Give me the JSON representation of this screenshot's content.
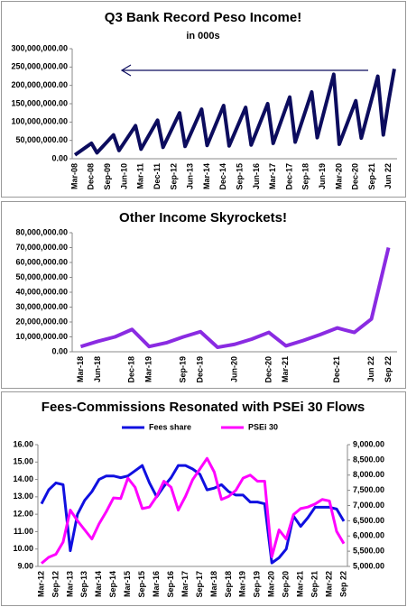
{
  "chart_data": [
    {
      "type": "line",
      "title": "Q3 Bank Record Peso Income!",
      "subtitle": "in 000s",
      "categories": [
        "Mar-08",
        null,
        null,
        "Dec-08",
        null,
        null,
        "Sep-09",
        null,
        null,
        "Jun-10",
        null,
        null,
        "Mar-11",
        null,
        null,
        "Dec-11",
        null,
        null,
        "Sep-12",
        null,
        null,
        "Jun-13",
        null,
        null,
        "Mar-14",
        null,
        null,
        "Dec-14",
        null,
        null,
        "Sep-15",
        null,
        null,
        "Jun-16",
        null,
        null,
        "Mar-17",
        null,
        null,
        "Dec-17",
        null,
        null,
        "Sep-18",
        null,
        null,
        "Jun-19",
        null,
        null,
        "Mar-20",
        null,
        null,
        "Dec-20",
        null,
        null,
        "Sep-21",
        null,
        null,
        "Jun 22",
        null
      ],
      "values": [
        10500000,
        21000000,
        31500000,
        42000000,
        16250000,
        32500000,
        48750000,
        65000000,
        22500000,
        45000000,
        67500000,
        90000000,
        26250000,
        52500000,
        78750000,
        105000000,
        31250000,
        62500000,
        93750000,
        125000000,
        33750000,
        67500000,
        101250000,
        135000000,
        36250000,
        72500000,
        108750000,
        145000000,
        35000000,
        70000000,
        105000000,
        140000000,
        37500000,
        75000000,
        112500000,
        150000000,
        42000000,
        84000000,
        126000000,
        168000000,
        45500000,
        91000000,
        136500000,
        182000000,
        57500000,
        115000000,
        172500000,
        230000000,
        39500000,
        79000000,
        118500000,
        158000000,
        56250000,
        112500000,
        168750000,
        225000000,
        65000000,
        160000000,
        245000000
      ],
      "color": "#0c0c5e",
      "ylim": [
        0,
        300000000
      ],
      "yticks": [
        {
          "value": 0,
          "label": "0.00"
        },
        {
          "value": 50000000,
          "label": "50,000,000.00"
        },
        {
          "value": 100000000,
          "label": "100,000,000.00"
        },
        {
          "value": 150000000,
          "label": "150,000,000.00"
        },
        {
          "value": 200000000,
          "label": "200,000,000.00"
        },
        {
          "value": 250000000,
          "label": "250,000,000.00"
        },
        {
          "value": 300000000,
          "label": "300,000,000.00"
        }
      ]
    },
    {
      "type": "line",
      "title": "Other Income Skyrockets!",
      "categories": [
        "Mar-18",
        "Jun-18",
        null,
        "Dec-18",
        "Mar-19",
        null,
        "Sep-19",
        "Dec-19",
        null,
        "Jun-20",
        null,
        "Dec-20",
        "Mar-21",
        null,
        null,
        "Dec-21",
        null,
        "Jun 22",
        "Sep 22"
      ],
      "values": [
        3500000,
        7000000,
        10000000,
        15000000,
        3500000,
        6000000,
        10000000,
        13500000,
        3000000,
        5000000,
        8500000,
        13000000,
        4000000,
        7500000,
        11500000,
        16000000,
        13000000,
        22000000,
        70000000
      ],
      "color": "#8a2be2",
      "ylim": [
        0,
        80000000
      ],
      "yticks": [
        {
          "value": 0,
          "label": "0.00"
        },
        {
          "value": 10000000,
          "label": "10,000,000.00"
        },
        {
          "value": 20000000,
          "label": "20,000,000.00"
        },
        {
          "value": 30000000,
          "label": "30,000,000.00"
        },
        {
          "value": 40000000,
          "label": "40,000,000.00"
        },
        {
          "value": 50000000,
          "label": "50,000,000.00"
        },
        {
          "value": 60000000,
          "label": "60,000,000.00"
        },
        {
          "value": 70000000,
          "label": "70,000,000.00"
        },
        {
          "value": 80000000,
          "label": "80,000,000.00"
        }
      ]
    },
    {
      "type": "line",
      "title": "Fees-Commissions Resonated with PSEi 30 Flows",
      "legend": "top",
      "categories": [
        "Mar-12",
        null,
        "Sep-12",
        null,
        "Mar-13",
        null,
        "Sep-13",
        null,
        "Mar-14",
        null,
        "Sep-14",
        null,
        "Mar-15",
        null,
        "Sep-15",
        null,
        "Mar-16",
        null,
        "Sep-16",
        null,
        "Mar-17",
        null,
        "Sep-17",
        null,
        "Mar-18",
        null,
        "Sep-18",
        null,
        "Mar-19",
        null,
        "Sep-19",
        null,
        "Mar-20",
        null,
        "Sep-20",
        null,
        "Mar-21",
        null,
        "Sep-21",
        null,
        "Mar-22",
        null,
        "Sep 22"
      ],
      "series": [
        {
          "name": "Fees share",
          "color": "#1010e0",
          "values": [
            12.6,
            13.4,
            13.8,
            13.7,
            9.9,
            12.0,
            12.8,
            13.3,
            14.0,
            14.2,
            14.2,
            14.1,
            14.2,
            14.5,
            14.8,
            13.8,
            13.0,
            13.6,
            14.1,
            14.8,
            14.8,
            14.6,
            14.3,
            13.4,
            13.5,
            13.7,
            13.3,
            13.1,
            13.1,
            12.7,
            12.7,
            12.6,
            9.2,
            9.5,
            10.0,
            11.9,
            11.3,
            11.8,
            12.4,
            12.4,
            12.4,
            12.3,
            11.6
          ]
        },
        {
          "name": "PSEi 30",
          "color": "#ff00ff",
          "axis": "y2",
          "values": [
            5100,
            5300,
            5400,
            5800,
            6850,
            6500,
            6200,
            5900,
            6400,
            6800,
            7250,
            7230,
            7900,
            7600,
            6900,
            6950,
            7300,
            7800,
            7600,
            6850,
            7300,
            7850,
            8200,
            8550,
            8100,
            7200,
            7300,
            7500,
            7900,
            8000,
            7800,
            7800,
            5320,
            6200,
            5900,
            6700,
            6900,
            6950,
            7050,
            7200,
            7150,
            6150,
            5750
          ]
        }
      ],
      "ylim": [
        9,
        16
      ],
      "yticks": [
        {
          "value": 9,
          "label": "9.00"
        },
        {
          "value": 10,
          "label": "10.00"
        },
        {
          "value": 11,
          "label": "11.00"
        },
        {
          "value": 12,
          "label": "12.00"
        },
        {
          "value": 13,
          "label": "13.00"
        },
        {
          "value": 14,
          "label": "14.00"
        },
        {
          "value": 15,
          "label": "15.00"
        },
        {
          "value": 16,
          "label": "16.00"
        }
      ],
      "y2lim": [
        5000,
        9000
      ],
      "y2ticks": [
        {
          "value": 5000,
          "label": "5,000.00"
        },
        {
          "value": 5500,
          "label": "5,500.00"
        },
        {
          "value": 6000,
          "label": "6,000.00"
        },
        {
          "value": 6500,
          "label": "6,500.00"
        },
        {
          "value": 7000,
          "label": "7,000.00"
        },
        {
          "value": 7500,
          "label": "7,500.00"
        },
        {
          "value": 8000,
          "label": "8,000.00"
        },
        {
          "value": 8500,
          "label": "8,500.00"
        },
        {
          "value": 9000,
          "label": "9,000.00"
        }
      ]
    }
  ]
}
